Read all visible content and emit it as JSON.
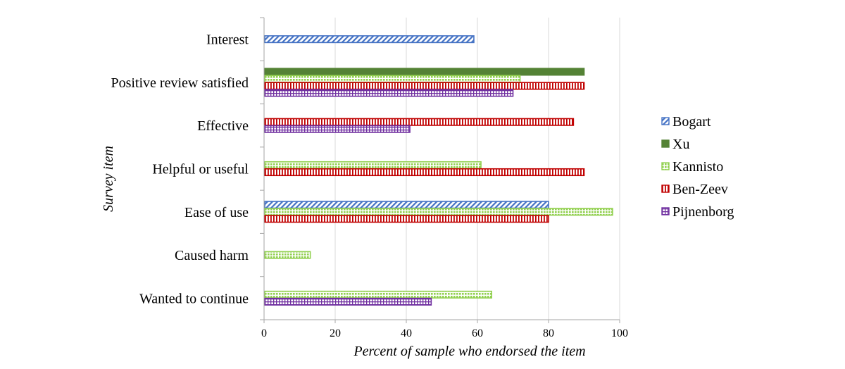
{
  "chart_data": {
    "type": "bar",
    "orientation": "horizontal",
    "categories": [
      "Interest",
      "Positive review satisfied",
      "Effective",
      "Helpful or useful",
      "Ease of use",
      "Caused harm",
      "Wanted to continue"
    ],
    "series": [
      {
        "name": "Bogart",
        "color": "#4472C4",
        "pattern": "diagonal-stripes",
        "values": [
          59,
          null,
          null,
          null,
          80,
          null,
          null
        ]
      },
      {
        "name": "Xu",
        "color": "#548235",
        "pattern": "solid",
        "values": [
          null,
          90,
          null,
          null,
          null,
          null,
          null
        ]
      },
      {
        "name": "Kannisto",
        "color": "#92D050",
        "pattern": "dotted-grid",
        "values": [
          null,
          72,
          null,
          61,
          98,
          13,
          64
        ]
      },
      {
        "name": "Ben-Zeev",
        "color": "#C00000",
        "pattern": "vertical-stripes",
        "values": [
          null,
          90,
          87,
          90,
          80,
          null,
          null
        ]
      },
      {
        "name": "Pijnenborg",
        "color": "#7030A0",
        "pattern": "grid",
        "values": [
          null,
          70,
          41,
          null,
          null,
          null,
          47
        ]
      }
    ],
    "xlabel": "Percent of sample who endorsed the item",
    "ylabel": "Survey item",
    "xlim": [
      0,
      100
    ],
    "xticks": [
      "0",
      "20",
      "40",
      "60",
      "80",
      "100"
    ],
    "grid": true,
    "legend_position": "right"
  }
}
